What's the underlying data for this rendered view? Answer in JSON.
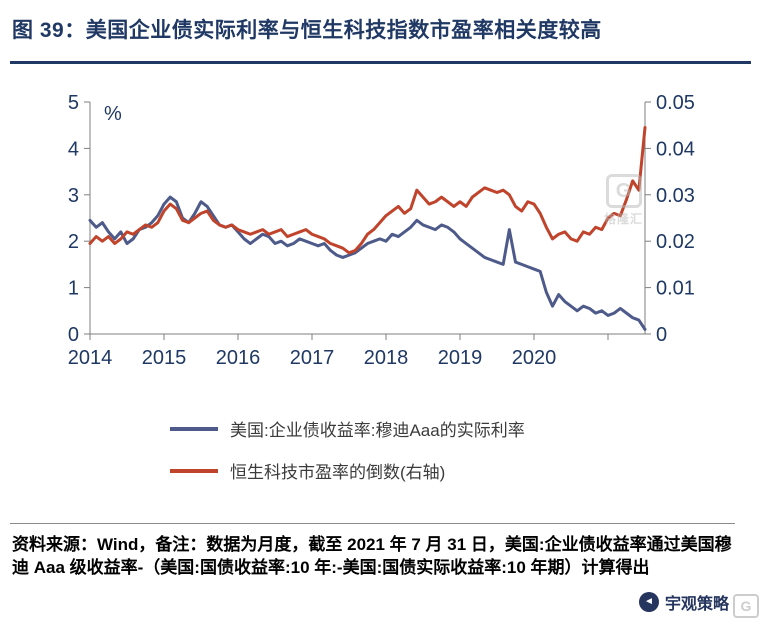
{
  "footer": {
    "source_note": "资料来源：Wind，备注：数据为月度，截至 2021 年 7 月 31 日，美国:企业债收益率通过美国穆迪 Aaa 级收益率-（美国:国债收益率:10 年:-美国:国债实际收益率:10 年期）计算得出"
  },
  "brand": {
    "name": "宇观策略",
    "icon_glyph": "◄",
    "corner_badge": "G"
  },
  "watermark": {
    "badge": "G",
    "text": "格隆汇"
  },
  "colors": {
    "title_navy": "#1F3864",
    "axis_gray": "#7f7f7f",
    "blue_line": "#4D5A8A",
    "red_line": "#C0442B"
  },
  "chart_data": {
    "type": "line",
    "title": "图 39：美国企业债实际利率与恒生科技指数市盈率相关度较高",
    "x_unit": "month",
    "x_start": "2014-01",
    "x_end": "2021-07",
    "x_tick_labels": [
      "2014",
      "2015",
      "2016",
      "2017",
      "2018",
      "2019",
      "2020"
    ],
    "grid": false,
    "legend_position": "bottom",
    "left_axis": {
      "label": "%",
      "min": 0,
      "max": 5,
      "ticks": [
        0,
        1,
        2,
        3,
        4,
        5
      ]
    },
    "right_axis": {
      "min": 0,
      "max": 0.05,
      "ticks": [
        0,
        0.01,
        0.02,
        0.03,
        0.04,
        0.05
      ],
      "tick_labels": [
        "0",
        "0.01",
        "0.02",
        "0.03",
        "0.04",
        "0.05"
      ]
    },
    "series": [
      {
        "name": "美国:企业债收益率:穆迪Aaa的实际利率",
        "axis": "left",
        "color": "#4D5A8A",
        "values": [
          2.45,
          2.3,
          2.4,
          2.2,
          2.05,
          2.2,
          1.95,
          2.05,
          2.25,
          2.3,
          2.4,
          2.55,
          2.8,
          2.95,
          2.85,
          2.5,
          2.4,
          2.6,
          2.85,
          2.75,
          2.55,
          2.35,
          2.3,
          2.35,
          2.2,
          2.05,
          1.95,
          2.05,
          2.15,
          2.1,
          1.95,
          2.0,
          1.9,
          1.95,
          2.05,
          2.0,
          1.95,
          1.9,
          1.95,
          1.8,
          1.7,
          1.65,
          1.7,
          1.75,
          1.85,
          1.95,
          2.0,
          2.05,
          2.0,
          2.15,
          2.1,
          2.2,
          2.3,
          2.45,
          2.35,
          2.3,
          2.25,
          2.35,
          2.3,
          2.2,
          2.05,
          1.95,
          1.85,
          1.75,
          1.65,
          1.6,
          1.55,
          1.5,
          2.25,
          1.55,
          1.5,
          1.45,
          1.4,
          1.35,
          0.9,
          0.6,
          0.85,
          0.7,
          0.6,
          0.5,
          0.6,
          0.55,
          0.45,
          0.5,
          0.4,
          0.45,
          0.55,
          0.45,
          0.35,
          0.3,
          0.1
        ]
      },
      {
        "name": "恒生科技市盈率的倒数(右轴)",
        "axis": "right",
        "color": "#C0442B",
        "values": [
          0.0195,
          0.021,
          0.02,
          0.021,
          0.0195,
          0.0205,
          0.022,
          0.0215,
          0.0225,
          0.0235,
          0.023,
          0.024,
          0.0265,
          0.028,
          0.027,
          0.0245,
          0.024,
          0.025,
          0.026,
          0.0265,
          0.0245,
          0.0235,
          0.023,
          0.0235,
          0.0225,
          0.022,
          0.0215,
          0.022,
          0.0225,
          0.0215,
          0.022,
          0.0225,
          0.021,
          0.0215,
          0.022,
          0.0225,
          0.0215,
          0.021,
          0.0205,
          0.0195,
          0.019,
          0.0185,
          0.0175,
          0.018,
          0.0195,
          0.0215,
          0.0225,
          0.024,
          0.0255,
          0.0265,
          0.0275,
          0.026,
          0.027,
          0.031,
          0.0295,
          0.028,
          0.0285,
          0.0295,
          0.0285,
          0.0275,
          0.0285,
          0.0275,
          0.0295,
          0.0305,
          0.0315,
          0.031,
          0.0305,
          0.031,
          0.03,
          0.0275,
          0.0265,
          0.0285,
          0.028,
          0.026,
          0.023,
          0.0205,
          0.0215,
          0.022,
          0.0205,
          0.02,
          0.022,
          0.0215,
          0.023,
          0.0225,
          0.025,
          0.026,
          0.0255,
          0.029,
          0.033,
          0.031,
          0.0445
        ]
      }
    ]
  }
}
